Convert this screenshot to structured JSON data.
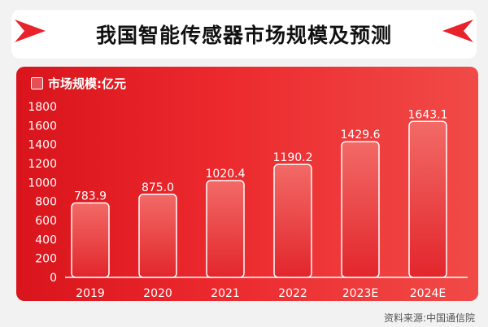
{
  "chart_data": {
    "type": "bar",
    "title": "我国智能传感器市场规模及预测",
    "series": [
      {
        "name": "市场规模:亿元",
        "values": [
          783.9,
          875.0,
          1020.4,
          1190.2,
          1429.6,
          1643.1
        ]
      }
    ],
    "categories": [
      "2019",
      "2020",
      "2021",
      "2022",
      "2023E",
      "2024E"
    ],
    "data_labels": [
      "783.9",
      "875.0",
      "1020.4",
      "1190.2",
      "1429.6",
      "1643.1"
    ],
    "y_ticks": [
      0,
      200,
      400,
      600,
      800,
      1000,
      1200,
      1400,
      1600,
      1800
    ],
    "ylim": [
      0,
      1800
    ],
    "xlabel": "",
    "ylabel": "",
    "legend_position": "top-left",
    "grid": false
  },
  "source": "资料来源:中国通信院",
  "colors": {
    "bar_accent": "#ffffff",
    "panel": "#e8232a",
    "deco": "#e8232a"
  },
  "icons": [
    "play-arrow-icon",
    "play-arrow-icon"
  ]
}
